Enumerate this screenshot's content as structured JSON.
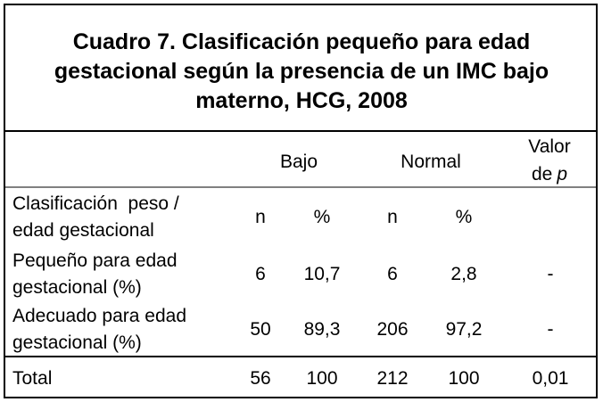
{
  "title": [
    "Cuadro 7. Clasificación pequeño para edad",
    "gestacional según la presencia de un IMC bajo",
    "materno, HCG, 2008"
  ],
  "header": {
    "bajo": "Bajo",
    "normal": "Normal",
    "valor": "Valor",
    "de": "de",
    "p": "p"
  },
  "subheader": {
    "label": [
      "Clasificación  peso /",
      "edad gestacional"
    ],
    "cells": [
      "n",
      "%",
      "n",
      "%"
    ]
  },
  "rows": [
    {
      "label": [
        "Pequeño para edad",
        "gestacional (%)"
      ],
      "cells": [
        "6",
        "10,7",
        "6",
        "2,8",
        "-"
      ]
    },
    {
      "label": [
        "Adecuado para edad",
        "gestacional (%)"
      ],
      "cells": [
        "50",
        "89,3",
        "206",
        "97,2",
        "-"
      ]
    }
  ],
  "total": {
    "label": "Total",
    "cells": [
      "56",
      "100",
      "212",
      "100",
      "0,01"
    ]
  }
}
